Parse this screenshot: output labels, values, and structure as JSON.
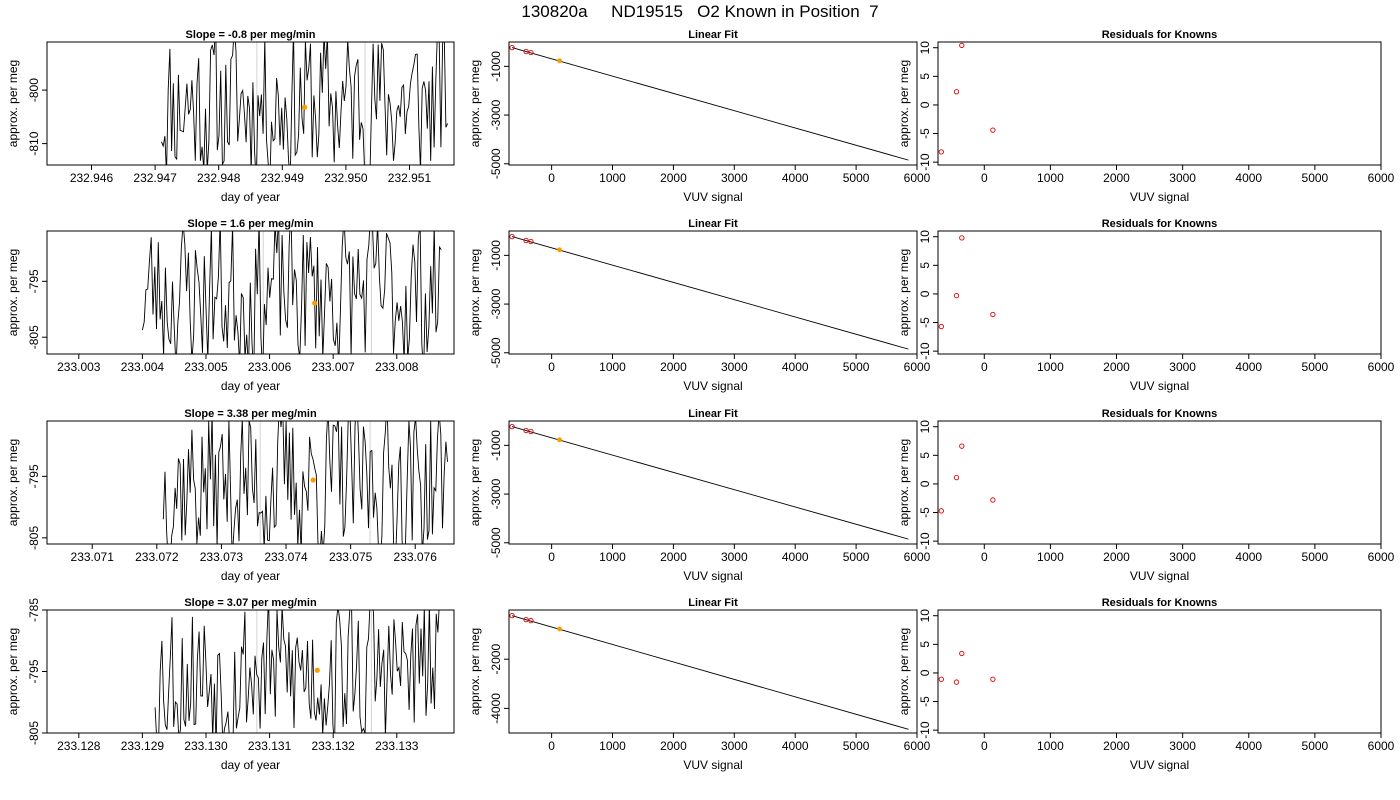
{
  "page_title": "130820a     ND19515   O2 Known in Position  7",
  "colors": {
    "trace": "#000000",
    "marker_orange": "#ff9900",
    "residual_red": "#dd0000",
    "window_line": "#d3d3d3"
  },
  "chart_data": [
    {
      "type": "line",
      "row": 0,
      "panel": "time",
      "title": "Slope =  -0.8  per meg/min",
      "xlabel": "day of year",
      "ylabel": "approx. per meg",
      "xlim": [
        232.9453,
        232.9517
      ],
      "ylim": [
        -814,
        -791
      ],
      "xticks": [
        "232.946",
        "232.947",
        "232.948",
        "232.949",
        "232.950",
        "232.951"
      ],
      "xtick_values": [
        232.946,
        232.947,
        232.948,
        232.949,
        232.95,
        232.951
      ],
      "yticks": [
        "-810",
        "-800"
      ],
      "ytick_values": [
        -810,
        -800
      ],
      "x_start": 232.9471,
      "x_end": 232.9516,
      "seed": 11,
      "window": [
        232.9486,
        232.9503
      ],
      "marker": {
        "x": 232.94935,
        "y": -803.2
      }
    },
    {
      "type": "line",
      "row": 1,
      "panel": "time",
      "title": "Slope =  1.6  per meg/min",
      "xlabel": "day of year",
      "ylabel": "approx. per meg",
      "xlim": [
        233.0025,
        233.0089
      ],
      "ylim": [
        -808,
        -786
      ],
      "xticks": [
        "233.003",
        "233.004",
        "233.005",
        "233.006",
        "233.007",
        "233.008"
      ],
      "xtick_values": [
        233.003,
        233.004,
        233.005,
        233.006,
        233.007,
        233.008
      ],
      "yticks": [
        "-805",
        "-795"
      ],
      "ytick_values": [
        -805,
        -795
      ],
      "x_start": 233.004,
      "x_end": 233.0087,
      "seed": 23,
      "window": [
        233.0059,
        233.0076
      ],
      "marker": {
        "x": 233.00671,
        "y": -798.9
      }
    },
    {
      "type": "line",
      "row": 2,
      "panel": "time",
      "title": "Slope =  3.38  per meg/min",
      "xlabel": "day of year",
      "ylabel": "approx. per meg",
      "xlim": [
        233.0703,
        233.0766
      ],
      "ylim": [
        -806,
        -786
      ],
      "xticks": [
        "233.071",
        "233.072",
        "233.073",
        "233.074",
        "233.075",
        "233.076"
      ],
      "xtick_values": [
        233.071,
        233.072,
        233.073,
        233.074,
        233.075,
        233.076
      ],
      "yticks": [
        "-805",
        "-795"
      ],
      "ytick_values": [
        -805,
        -795
      ],
      "x_start": 233.0721,
      "x_end": 233.0765,
      "seed": 37,
      "window": [
        233.0736,
        233.0753
      ],
      "marker": {
        "x": 233.07442,
        "y": -795.6
      }
    },
    {
      "type": "line",
      "row": 3,
      "panel": "time",
      "title": "Slope =  3.07  per meg/min",
      "xlabel": "day of year",
      "ylabel": "approx. per meg",
      "xlim": [
        233.1275,
        233.1339
      ],
      "ylim": [
        -805,
        -785
      ],
      "xticks": [
        "233.128",
        "233.129",
        "233.130",
        "233.131",
        "233.132",
        "233.133"
      ],
      "xtick_values": [
        233.128,
        233.129,
        233.13,
        233.131,
        233.132,
        233.133
      ],
      "yticks": [
        "-805",
        "-795",
        "-785"
      ],
      "ytick_values": [
        -805,
        -795,
        -785
      ],
      "x_start": 233.1292,
      "x_end": 233.1337,
      "seed": 53,
      "window": [
        233.1308,
        233.1326
      ],
      "marker": {
        "x": 233.13175,
        "y": -794.8
      }
    },
    {
      "type": "scatter",
      "row": 0,
      "panel": "fit",
      "title": "Linear Fit",
      "xlabel": "VUV signal",
      "ylabel": "approx. per meg",
      "xlim": [
        -700,
        6000
      ],
      "ylim": [
        -5050,
        0
      ],
      "xticks": [
        "0",
        "1000",
        "2000",
        "3000",
        "4000",
        "5000",
        "6000"
      ],
      "xtick_values": [
        0,
        1000,
        2000,
        3000,
        4000,
        5000,
        6000
      ],
      "yticks": [
        "-5000",
        "-3000",
        "-1000"
      ],
      "ytick_values": [
        -5000,
        -3000,
        -1000
      ],
      "line": {
        "x0": -650,
        "y0": -230,
        "x1": 5860,
        "y1": -4850
      },
      "points": [
        {
          "x": -650,
          "y": -230
        },
        {
          "x": -420,
          "y": -390
        },
        {
          "x": -340,
          "y": -430
        }
      ],
      "known": {
        "x": 130,
        "y": -770
      }
    },
    {
      "type": "scatter",
      "row": 1,
      "panel": "fit",
      "title": "Linear Fit",
      "xlabel": "VUV signal",
      "ylabel": "approx. per meg",
      "xlim": [
        -700,
        6000
      ],
      "ylim": [
        -5050,
        0
      ],
      "xticks": [
        "0",
        "1000",
        "2000",
        "3000",
        "4000",
        "5000",
        "6000"
      ],
      "xtick_values": [
        0,
        1000,
        2000,
        3000,
        4000,
        5000,
        6000
      ],
      "yticks": [
        "-5000",
        "-3000",
        "-1000"
      ],
      "ytick_values": [
        -5000,
        -3000,
        -1000
      ],
      "line": {
        "x0": -650,
        "y0": -230,
        "x1": 5860,
        "y1": -4850
      },
      "points": [
        {
          "x": -650,
          "y": -230
        },
        {
          "x": -420,
          "y": -390
        },
        {
          "x": -340,
          "y": -430
        }
      ],
      "known": {
        "x": 130,
        "y": -770
      }
    },
    {
      "type": "scatter",
      "row": 2,
      "panel": "fit",
      "title": "Linear Fit",
      "xlabel": "VUV signal",
      "ylabel": "approx. per meg",
      "xlim": [
        -700,
        6000
      ],
      "ylim": [
        -5050,
        0
      ],
      "xticks": [
        "0",
        "1000",
        "2000",
        "3000",
        "4000",
        "5000",
        "6000"
      ],
      "xtick_values": [
        0,
        1000,
        2000,
        3000,
        4000,
        5000,
        6000
      ],
      "yticks": [
        "-5000",
        "-3000",
        "-1000"
      ],
      "ytick_values": [
        -5000,
        -3000,
        -1000
      ],
      "line": {
        "x0": -650,
        "y0": -230,
        "x1": 5860,
        "y1": -4850
      },
      "points": [
        {
          "x": -650,
          "y": -230
        },
        {
          "x": -420,
          "y": -390
        },
        {
          "x": -340,
          "y": -430
        }
      ],
      "known": {
        "x": 130,
        "y": -770
      }
    },
    {
      "type": "scatter",
      "row": 3,
      "panel": "fit",
      "title": "Linear Fit",
      "xlabel": "VUV signal",
      "ylabel": "approx. per meg",
      "xlim": [
        -700,
        6000
      ],
      "ylim": [
        -5000,
        0
      ],
      "xticks": [
        "0",
        "1000",
        "2000",
        "3000",
        "4000",
        "5000",
        "6000"
      ],
      "xtick_values": [
        0,
        1000,
        2000,
        3000,
        4000,
        5000,
        6000
      ],
      "yticks": [
        "-4000",
        "-2000"
      ],
      "ytick_values": [
        -4000,
        -2000
      ],
      "line": {
        "x0": -650,
        "y0": -230,
        "x1": 5860,
        "y1": -4850
      },
      "points": [
        {
          "x": -650,
          "y": -230
        },
        {
          "x": -420,
          "y": -390
        },
        {
          "x": -340,
          "y": -430
        }
      ],
      "known": {
        "x": 130,
        "y": -770
      }
    },
    {
      "type": "scatter",
      "row": 0,
      "panel": "resid",
      "title": "Residuals for Knowns",
      "xlabel": "VUV signal",
      "ylabel": "approx. per meg",
      "xlim": [
        -700,
        6000
      ],
      "ylim": [
        -10.5,
        11
      ],
      "xticks": [
        "0",
        "1000",
        "2000",
        "3000",
        "4000",
        "5000",
        "6000"
      ],
      "xtick_values": [
        0,
        1000,
        2000,
        3000,
        4000,
        5000,
        6000
      ],
      "yticks": [
        "-10",
        "-5",
        "0",
        "5",
        "10"
      ],
      "ytick_values": [
        -10,
        -5,
        0,
        5,
        10
      ],
      "points": [
        {
          "x": -650,
          "y": -8.2
        },
        {
          "x": -420,
          "y": 2.3
        },
        {
          "x": -340,
          "y": 10.4
        },
        {
          "x": 130,
          "y": -4.4
        }
      ]
    },
    {
      "type": "scatter",
      "row": 1,
      "panel": "resid",
      "title": "Residuals for Knowns",
      "xlabel": "VUV signal",
      "ylabel": "approx. per meg",
      "xlim": [
        -700,
        6000
      ],
      "ylim": [
        -10.5,
        11
      ],
      "xticks": [
        "0",
        "1000",
        "2000",
        "3000",
        "4000",
        "5000",
        "6000"
      ],
      "xtick_values": [
        0,
        1000,
        2000,
        3000,
        4000,
        5000,
        6000
      ],
      "yticks": [
        "-10",
        "-5",
        "0",
        "5",
        "10"
      ],
      "ytick_values": [
        -10,
        -5,
        0,
        5,
        10
      ],
      "points": [
        {
          "x": -650,
          "y": -5.7
        },
        {
          "x": -420,
          "y": -0.3
        },
        {
          "x": -340,
          "y": 9.8
        },
        {
          "x": 130,
          "y": -3.6
        }
      ]
    },
    {
      "type": "scatter",
      "row": 2,
      "panel": "resid",
      "title": "Residuals for Knowns",
      "xlabel": "VUV signal",
      "ylabel": "approx. per meg",
      "xlim": [
        -700,
        6000
      ],
      "ylim": [
        -10.5,
        11
      ],
      "xticks": [
        "0",
        "1000",
        "2000",
        "3000",
        "4000",
        "5000",
        "6000"
      ],
      "xtick_values": [
        0,
        1000,
        2000,
        3000,
        4000,
        5000,
        6000
      ],
      "yticks": [
        "-10",
        "-5",
        "0",
        "5",
        "10"
      ],
      "ytick_values": [
        -10,
        -5,
        0,
        5,
        10
      ],
      "points": [
        {
          "x": -650,
          "y": -4.7
        },
        {
          "x": -420,
          "y": 1.1
        },
        {
          "x": -340,
          "y": 6.6
        },
        {
          "x": 130,
          "y": -2.8
        }
      ]
    },
    {
      "type": "scatter",
      "row": 3,
      "panel": "resid",
      "title": "Residuals for Knowns",
      "xlabel": "VUV signal",
      "ylabel": "approx. per meg",
      "xlim": [
        -700,
        6000
      ],
      "ylim": [
        -10.5,
        11
      ],
      "xticks": [
        "0",
        "1000",
        "2000",
        "3000",
        "4000",
        "5000",
        "6000"
      ],
      "xtick_values": [
        0,
        1000,
        2000,
        3000,
        4000,
        5000,
        6000
      ],
      "yticks": [
        "-10",
        "-5",
        "0",
        "5",
        "10"
      ],
      "ytick_values": [
        -10,
        -5,
        0,
        5,
        10
      ],
      "points": [
        {
          "x": -650,
          "y": -1.1
        },
        {
          "x": -420,
          "y": -1.6
        },
        {
          "x": -340,
          "y": 3.4
        },
        {
          "x": 130,
          "y": -1.1
        }
      ]
    }
  ]
}
